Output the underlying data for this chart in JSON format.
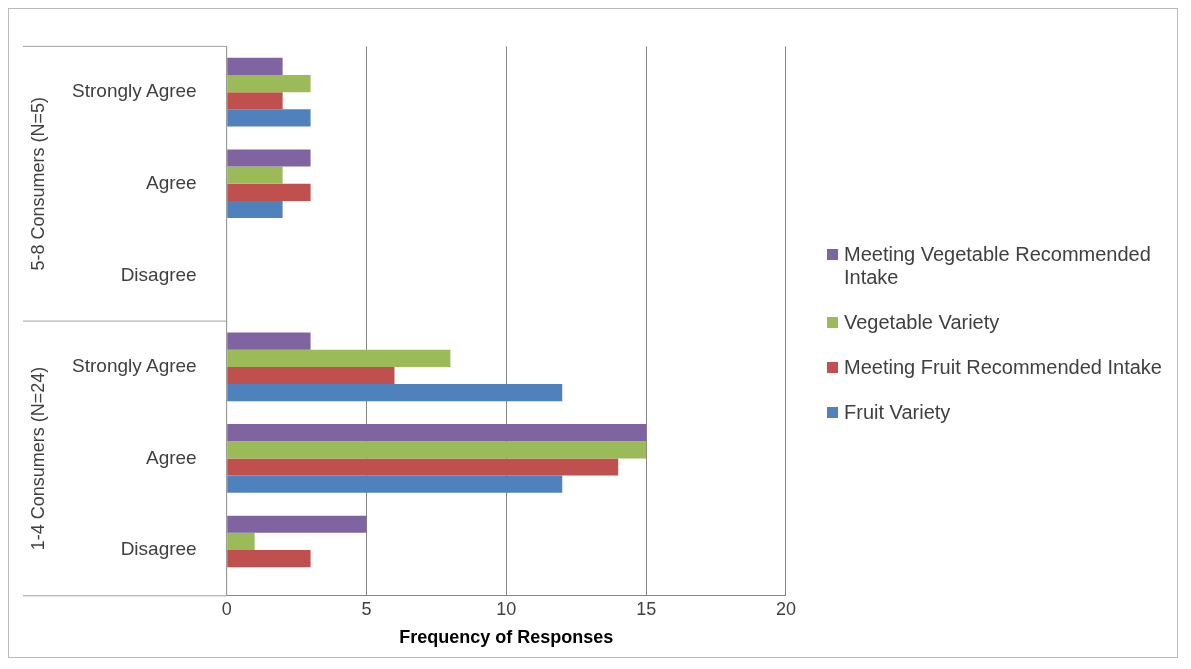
{
  "chart_data": {
    "type": "bar",
    "orientation": "horizontal",
    "categories": [
      "Strongly Agree",
      "Agree",
      "Disagree",
      "Strongly Agree",
      "Agree",
      "Disagree"
    ],
    "series": [
      {
        "name": "Meeting Vegetable Recommended Intake",
        "color": "#8064a2",
        "values": [
          2,
          3,
          0,
          3,
          15,
          5
        ]
      },
      {
        "name": "Vegetable Variety",
        "color": "#9bbb59",
        "values": [
          3,
          2,
          0,
          8,
          15,
          1
        ]
      },
      {
        "name": "Meeting Fruit Recommended Intake",
        "color": "#c0504d",
        "values": [
          2,
          3,
          0,
          6,
          14,
          3
        ]
      },
      {
        "name": "Fruit Variety",
        "color": "#4f81bd",
        "values": [
          3,
          2,
          0,
          12,
          12,
          0
        ]
      }
    ],
    "xlabel": "Frequency of Responses",
    "xlim": [
      0,
      20
    ],
    "xticks": [
      0,
      5,
      10,
      15,
      20
    ],
    "grid": "x",
    "legend": "right",
    "annotations": [
      "5-8 Consumers (N=5)",
      "1-4 Consumers (N=24)"
    ]
  }
}
